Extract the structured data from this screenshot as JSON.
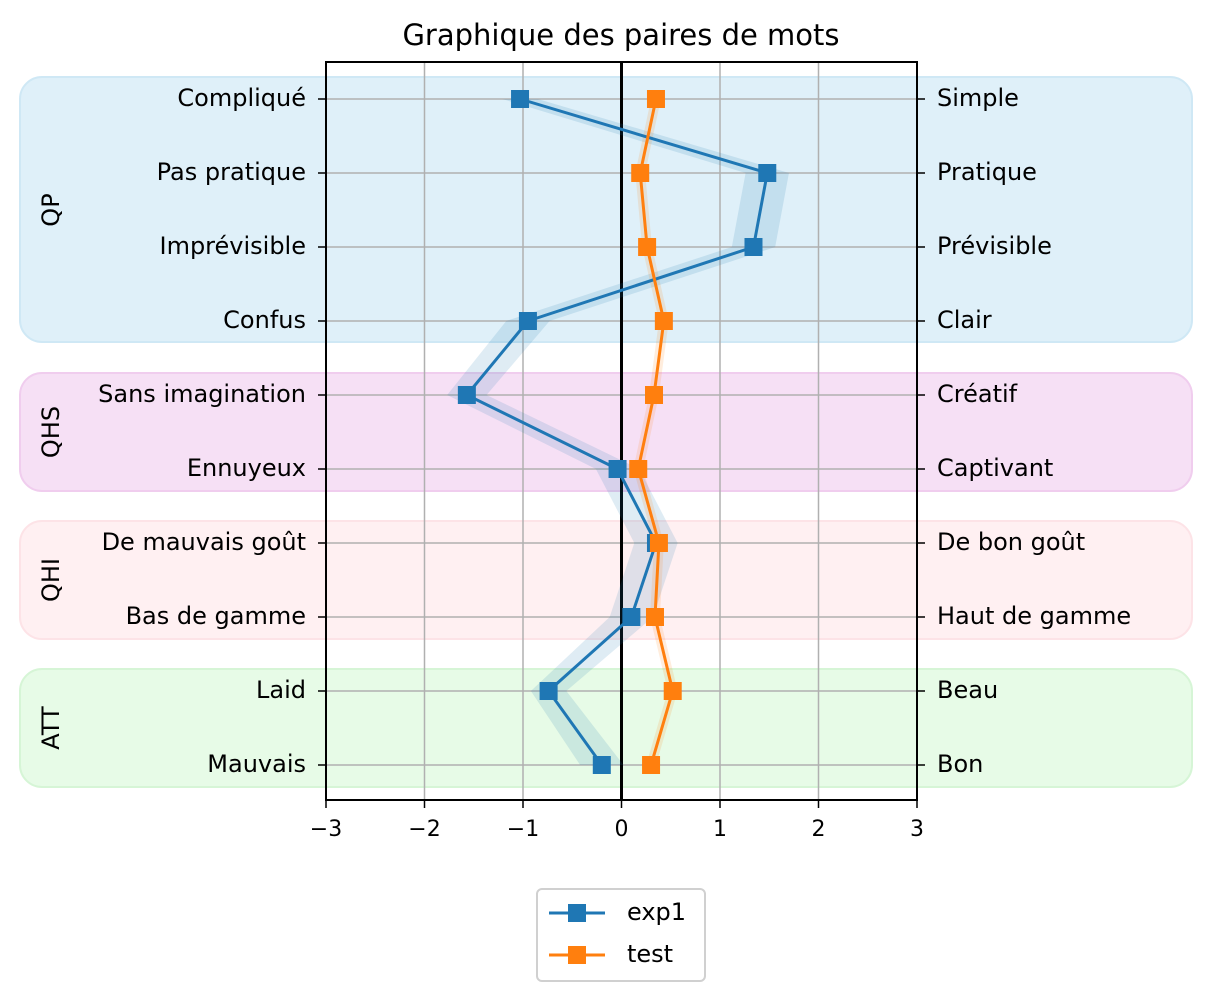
{
  "chart_data": {
    "type": "line",
    "title": "Graphique des paires de mots",
    "orientation": "horizontal-profile",
    "xlim": [
      -3,
      3
    ],
    "xticks": [
      -3,
      -2,
      -1,
      0,
      1,
      2,
      3
    ],
    "xtick_labels": [
      "−3",
      "−2",
      "−1",
      "0",
      "1",
      "2",
      "3"
    ],
    "grid": true,
    "legend": "bottom-center",
    "pairs": [
      {
        "left": "Compliqué",
        "right": "Simple"
      },
      {
        "left": "Pas pratique",
        "right": "Pratique"
      },
      {
        "left": "Imprévisible",
        "right": "Prévisible"
      },
      {
        "left": "Confus",
        "right": "Clair"
      },
      {
        "left": "Sans imagination",
        "right": "Créatif"
      },
      {
        "left": "Ennuyeux",
        "right": "Captivant"
      },
      {
        "left": "De mauvais goût",
        "right": "De bon goût"
      },
      {
        "left": "Bas de gamme",
        "right": "Haut de gamme"
      },
      {
        "left": "Laid",
        "right": "Beau"
      },
      {
        "left": "Mauvais",
        "right": "Bon"
      }
    ],
    "groups": [
      {
        "name": "QP",
        "start": 0,
        "end": 3,
        "color": "#dff0f9",
        "border": "#cfe8f5"
      },
      {
        "name": "QHS",
        "start": 4,
        "end": 5,
        "color": "#f6e0f5",
        "border": "#f0cdee"
      },
      {
        "name": "QHI",
        "start": 6,
        "end": 7,
        "color": "#fff0f2",
        "border": "#fde3e7"
      },
      {
        "name": "ATT",
        "start": 8,
        "end": 9,
        "color": "#e7fbe7",
        "border": "#d6f5d6"
      }
    ],
    "series": [
      {
        "name": "exp1",
        "color": "#1f77b4",
        "values": [
          -1.03,
          1.48,
          1.34,
          -0.95,
          -1.57,
          -0.04,
          0.35,
          0.1,
          -0.74,
          -0.2
        ],
        "band": [
          0.18,
          0.22,
          0.22,
          0.22,
          0.2,
          0.22,
          0.22,
          0.22,
          0.18,
          0.22
        ]
      },
      {
        "name": "test",
        "color": "#ff7f0e",
        "values": [
          0.35,
          0.19,
          0.26,
          0.43,
          0.33,
          0.17,
          0.38,
          0.34,
          0.52,
          0.3
        ],
        "band": [
          0.05,
          0.05,
          0.05,
          0.05,
          0.05,
          0.05,
          0.05,
          0.05,
          0.05,
          0.05
        ]
      }
    ]
  }
}
